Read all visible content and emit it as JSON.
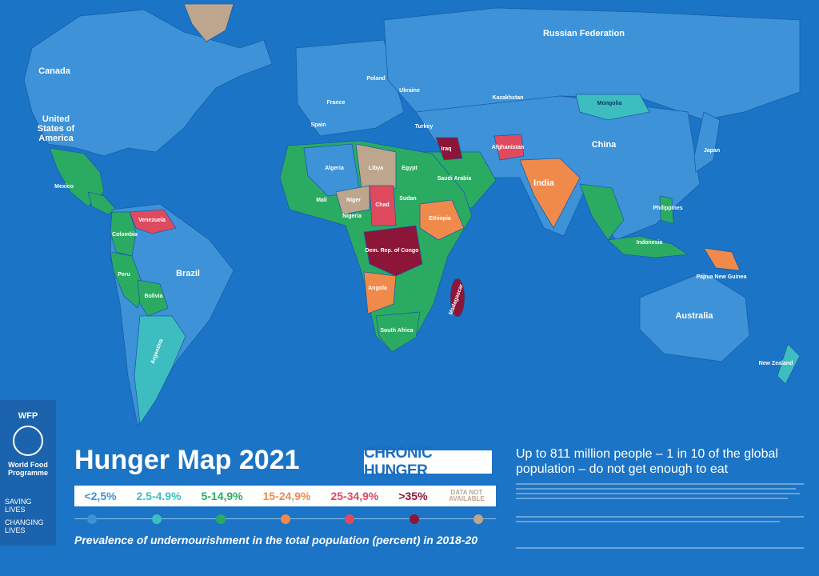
{
  "header": {
    "title": "Hunger Map 2021",
    "badge": "CHRONIC HUNGER"
  },
  "logo": {
    "acronym": "WFP",
    "name": "World Food Programme",
    "motto_1": "SAVING LIVES",
    "motto_2": "CHANGING LIVES"
  },
  "legend": {
    "items": [
      {
        "label": "<2,5%",
        "color": "#3d92d8"
      },
      {
        "label": "2.5-4.9%",
        "color": "#3dbdbf"
      },
      {
        "label": "5-14,9%",
        "color": "#2bab62"
      },
      {
        "label": "15-24,9%",
        "color": "#f08a4b"
      },
      {
        "label": "25-34,9%",
        "color": "#e04a5e"
      },
      {
        "label": ">35%",
        "color": "#8c1538"
      },
      {
        "label": "DATA NOT AVAILABLE",
        "color": "#bda68d"
      }
    ],
    "caption": "Prevalence of undernourishment in the total population (percent) in 2018-20"
  },
  "headline": "Up to 811 million people – 1 in 10 of the global population – do not get enough to eat",
  "country_labels": {
    "russia": "Russian Federation",
    "canada": "Canada",
    "usa": [
      "United",
      "States of",
      "America"
    ],
    "brazil": "Brazil",
    "china": "China",
    "india": "India",
    "australia": "Australia",
    "kazakhstan": "Kazakhstan",
    "mongolia": "Mongolia",
    "algeria": "Algeria",
    "argentina": "Argentina",
    "bolivia": "Bolivia",
    "drc": "Dem. Rep. of Congo",
    "nz": "New Zealand",
    "japan": "Japan",
    "indonesia": "Indonesia",
    "mexico": "Mexico",
    "iraq": "Iraq",
    "libya": "Libya",
    "egypt": "Egypt",
    "sudan": "Sudan",
    "chad": "Chad",
    "niger": "Niger",
    "mali": "Mali",
    "ethiopia": "Ethiopia",
    "png": "Papua New Guinea",
    "madagascar": "Madagascar",
    "south_africa": "South Africa",
    "angola": "Angola",
    "colombia": "Colombia",
    "venezuela": "Venezuela",
    "peru": "Peru",
    "nigeria": "Nigeria",
    "philippines": "Philippines",
    "afghanistan": "Afghanistan",
    "saudi": "Saudi Arabia",
    "france": "France",
    "poland": "Poland",
    "ukraine": "Ukraine",
    "turkey": "Turkey",
    "spain": "Spain"
  }
}
